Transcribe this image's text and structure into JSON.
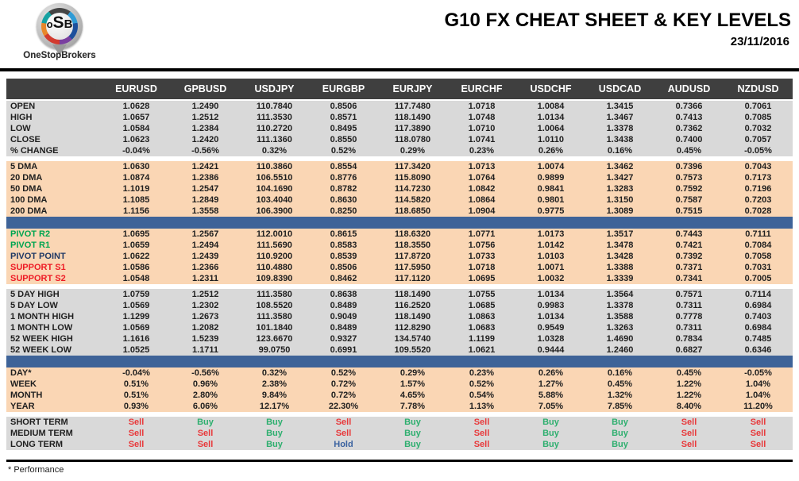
{
  "header": {
    "logo": {
      "l1": "o",
      "l2": "S",
      "l3": "B",
      "caption": "OneStopBrokers"
    },
    "title": "G10 FX CHEAT SHEET & KEY LEVELS",
    "date": "23/11/2016"
  },
  "footer": {
    "note": "* Performance"
  },
  "colors": {
    "header_band": "#3F3F3F",
    "gray_band": "#D9D9D9",
    "peach_band": "#FAD6B4",
    "blue_bar": "#3E6398",
    "text": "#1F1F1F",
    "pivot_green": "#00A550",
    "pivot_navy": "#1F3864",
    "support_red": "#EE1C25",
    "signals": {
      "Buy": "#2EAF6F",
      "Sell": "#E8393B",
      "Hold": "#3A62A0"
    }
  },
  "table": {
    "columns": [
      "EURUSD",
      "GPBUSD",
      "USDJPY",
      "EURGBP",
      "EURJPY",
      "EURCHF",
      "USDCHF",
      "USDCAD",
      "AUDUSD",
      "NZDUSD"
    ],
    "sections": [
      {
        "name": "ohlc",
        "bg": "gray_band",
        "after": "gap",
        "rows": [
          {
            "label": "OPEN",
            "values": [
              "1.0628",
              "1.2490",
              "110.7840",
              "0.8506",
              "117.7480",
              "1.0718",
              "1.0084",
              "1.3415",
              "0.7366",
              "0.7061"
            ]
          },
          {
            "label": "HIGH",
            "values": [
              "1.0657",
              "1.2512",
              "111.3530",
              "0.8571",
              "118.1490",
              "1.0748",
              "1.0134",
              "1.3467",
              "0.7413",
              "0.7085"
            ]
          },
          {
            "label": "LOW",
            "values": [
              "1.0584",
              "1.2384",
              "110.2720",
              "0.8495",
              "117.3890",
              "1.0710",
              "1.0064",
              "1.3378",
              "0.7362",
              "0.7032"
            ]
          },
          {
            "label": "CLOSE",
            "values": [
              "1.0623",
              "1.2420",
              "111.1360",
              "0.8550",
              "118.0780",
              "1.0741",
              "1.0110",
              "1.3438",
              "0.7400",
              "0.7057"
            ]
          },
          {
            "label": "% CHANGE",
            "values": [
              "-0.04%",
              "-0.56%",
              "0.32%",
              "0.52%",
              "0.29%",
              "0.23%",
              "0.26%",
              "0.16%",
              "0.45%",
              "-0.05%"
            ]
          }
        ]
      },
      {
        "name": "dma",
        "bg": "peach_band",
        "after": "blue",
        "rows": [
          {
            "label": "5 DMA",
            "values": [
              "1.0630",
              "1.2421",
              "110.3860",
              "0.8554",
              "117.3420",
              "1.0713",
              "1.0074",
              "1.3462",
              "0.7396",
              "0.7043"
            ]
          },
          {
            "label": "20 DMA",
            "values": [
              "1.0874",
              "1.2386",
              "106.5510",
              "0.8776",
              "115.8090",
              "1.0764",
              "0.9899",
              "1.3427",
              "0.7573",
              "0.7173"
            ]
          },
          {
            "label": "50 DMA",
            "values": [
              "1.1019",
              "1.2547",
              "104.1690",
              "0.8782",
              "114.7230",
              "1.0842",
              "0.9841",
              "1.3283",
              "0.7592",
              "0.7196"
            ]
          },
          {
            "label": "100 DMA",
            "values": [
              "1.1085",
              "1.2849",
              "103.4040",
              "0.8630",
              "114.5820",
              "1.0864",
              "0.9801",
              "1.3150",
              "0.7587",
              "0.7203"
            ]
          },
          {
            "label": "200 DMA",
            "values": [
              "1.1156",
              "1.3558",
              "106.3900",
              "0.8250",
              "118.6850",
              "1.0904",
              "0.9775",
              "1.3089",
              "0.7515",
              "0.7028"
            ]
          }
        ]
      },
      {
        "name": "pivots",
        "bg": "peach_band",
        "after": "gap",
        "rows": [
          {
            "label": "PIVOT R2",
            "label_color": "pivot_green",
            "values": [
              "1.0695",
              "1.2567",
              "112.0010",
              "0.8615",
              "118.6320",
              "1.0771",
              "1.0173",
              "1.3517",
              "0.7443",
              "0.7111"
            ]
          },
          {
            "label": "PIVOT R1",
            "label_color": "pivot_green",
            "values": [
              "1.0659",
              "1.2494",
              "111.5690",
              "0.8583",
              "118.3550",
              "1.0756",
              "1.0142",
              "1.3478",
              "0.7421",
              "0.7084"
            ]
          },
          {
            "label": "PIVOT POINT",
            "label_color": "pivot_navy",
            "values": [
              "1.0622",
              "1.2439",
              "110.9200",
              "0.8539",
              "117.8720",
              "1.0733",
              "1.0103",
              "1.3428",
              "0.7392",
              "0.7058"
            ]
          },
          {
            "label": "SUPPORT S1",
            "label_color": "support_red",
            "values": [
              "1.0586",
              "1.2366",
              "110.4880",
              "0.8506",
              "117.5950",
              "1.0718",
              "1.0071",
              "1.3388",
              "0.7371",
              "0.7031"
            ]
          },
          {
            "label": "SUPPORT S2",
            "label_color": "support_red",
            "values": [
              "1.0548",
              "1.2311",
              "109.8390",
              "0.8462",
              "117.1120",
              "1.0695",
              "1.0032",
              "1.3339",
              "0.7341",
              "0.7005"
            ]
          }
        ]
      },
      {
        "name": "ranges",
        "bg": "gray_band",
        "after": "blue",
        "rows": [
          {
            "label": "5 DAY HIGH",
            "values": [
              "1.0759",
              "1.2512",
              "111.3580",
              "0.8638",
              "118.1490",
              "1.0755",
              "1.0134",
              "1.3564",
              "0.7571",
              "0.7114"
            ]
          },
          {
            "label": "5 DAY LOW",
            "values": [
              "1.0569",
              "1.2302",
              "108.5520",
              "0.8489",
              "116.2520",
              "1.0685",
              "0.9983",
              "1.3378",
              "0.7311",
              "0.6984"
            ]
          },
          {
            "label": "1 MONTH HIGH",
            "values": [
              "1.1299",
              "1.2673",
              "111.3580",
              "0.9049",
              "118.1490",
              "1.0863",
              "1.0134",
              "1.3588",
              "0.7778",
              "0.7403"
            ]
          },
          {
            "label": "1 MONTH LOW",
            "values": [
              "1.0569",
              "1.2082",
              "101.1840",
              "0.8489",
              "112.8290",
              "1.0683",
              "0.9549",
              "1.3263",
              "0.7311",
              "0.6984"
            ]
          },
          {
            "label": "52 WEEK HIGH",
            "values": [
              "1.1616",
              "1.5239",
              "123.6670",
              "0.9327",
              "134.5740",
              "1.1199",
              "1.0328",
              "1.4690",
              "0.7834",
              "0.7485"
            ]
          },
          {
            "label": "52 WEEK LOW",
            "values": [
              "1.0525",
              "1.1711",
              "99.0750",
              "0.6991",
              "109.5520",
              "1.0621",
              "0.9444",
              "1.2460",
              "0.6827",
              "0.6346"
            ]
          }
        ]
      },
      {
        "name": "performance",
        "bg": "peach_band",
        "after": "gap",
        "rows": [
          {
            "label": "DAY*",
            "values": [
              "-0.04%",
              "-0.56%",
              "0.32%",
              "0.52%",
              "0.29%",
              "0.23%",
              "0.26%",
              "0.16%",
              "0.45%",
              "-0.05%"
            ]
          },
          {
            "label": "WEEK",
            "values": [
              "0.51%",
              "0.96%",
              "2.38%",
              "0.72%",
              "1.57%",
              "0.52%",
              "1.27%",
              "0.45%",
              "1.22%",
              "1.04%"
            ]
          },
          {
            "label": "MONTH",
            "values": [
              "0.51%",
              "2.80%",
              "9.84%",
              "0.72%",
              "4.65%",
              "0.54%",
              "5.88%",
              "1.32%",
              "1.22%",
              "1.04%"
            ]
          },
          {
            "label": "YEAR",
            "values": [
              "0.93%",
              "6.06%",
              "12.17%",
              "22.30%",
              "7.78%",
              "1.13%",
              "7.05%",
              "7.85%",
              "8.40%",
              "11.20%"
            ]
          }
        ]
      },
      {
        "name": "signals",
        "bg": "gray_band",
        "after": "none",
        "type": "signals",
        "rows": [
          {
            "label": "SHORT TERM",
            "values": [
              "Sell",
              "Buy",
              "Buy",
              "Sell",
              "Buy",
              "Sell",
              "Buy",
              "Buy",
              "Sell",
              "Sell"
            ]
          },
          {
            "label": "MEDIUM TERM",
            "values": [
              "Sell",
              "Sell",
              "Buy",
              "Sell",
              "Buy",
              "Sell",
              "Buy",
              "Buy",
              "Sell",
              "Sell"
            ]
          },
          {
            "label": "LONG TERM",
            "values": [
              "Sell",
              "Sell",
              "Buy",
              "Hold",
              "Buy",
              "Sell",
              "Buy",
              "Buy",
              "Sell",
              "Sell"
            ]
          }
        ]
      }
    ]
  }
}
